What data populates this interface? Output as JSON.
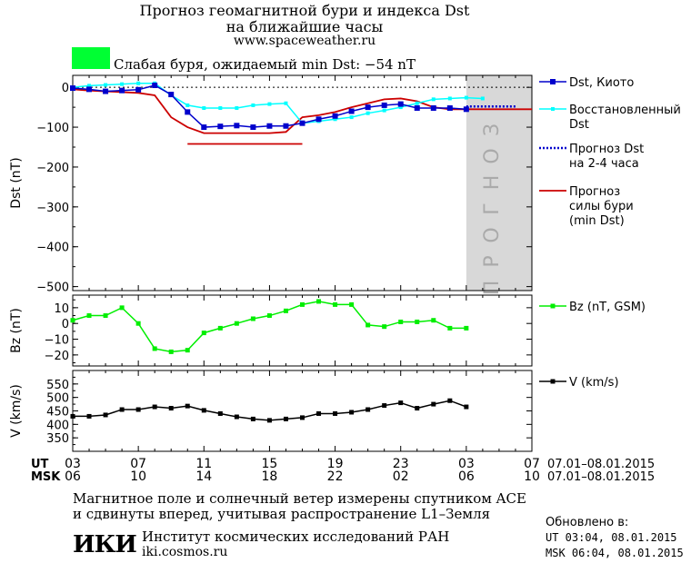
{
  "header": {
    "title_line1": "Прогноз геомагнитной бури и индекса Dst",
    "title_line2": "на ближайшие часы",
    "site": "www.spaceweather.ru"
  },
  "status": {
    "label": "Слабая буря, ожидаемый min Dst: −54 nT",
    "color": "#00ff33"
  },
  "forecast_zone_label": "ПРОГНОЗ",
  "colors": {
    "kyoto": "#0000cc",
    "restored": "#00ffff",
    "forecast_dst": "#0000cc",
    "storm": "#cc0000",
    "bz": "#00ee00",
    "v": "#000000",
    "forecast_band": "#d8d8d8"
  },
  "time_axis": {
    "ut_label": "UT",
    "msk_label": "MSK",
    "ut_ticks": [
      "03",
      "07",
      "11",
      "15",
      "19",
      "23",
      "03",
      "07"
    ],
    "msk_ticks": [
      "06",
      "10",
      "14",
      "18",
      "22",
      "02",
      "06",
      "10"
    ],
    "ut_range": "07.01–08.01.2015",
    "msk_range": "07.01–08.01.2015"
  },
  "chart_data": [
    {
      "type": "line",
      "ylabel": "Dst (nT)",
      "ylim": [
        -510,
        30
      ],
      "yticks": [
        0,
        -100,
        -200,
        -300,
        -400,
        -500
      ],
      "ytick_labels": [
        "0",
        "−100",
        "−200",
        "−300",
        "−400",
        "−500"
      ],
      "x_hours_range": [
        0,
        28
      ],
      "forecast_start_hour": 24,
      "series": [
        {
          "name": "Dst, Киото",
          "marker": "square",
          "x": [
            0,
            1,
            2,
            3,
            4,
            5,
            6,
            7,
            8,
            9,
            10,
            11,
            12,
            13,
            14,
            15,
            16,
            17,
            18,
            19,
            20,
            21,
            22,
            23,
            24
          ],
          "y": [
            -2,
            -5,
            -10,
            -8,
            -6,
            5,
            -18,
            -62,
            -100,
            -98,
            -96,
            -100,
            -97,
            -97,
            -90,
            -80,
            -72,
            -60,
            -50,
            -45,
            -42,
            -52,
            -52,
            -52,
            -55
          ]
        },
        {
          "name": "Восстановленный Dst",
          "marker": "square",
          "x": [
            0,
            1,
            2,
            3,
            4,
            5,
            6,
            7,
            8,
            9,
            10,
            11,
            12,
            13,
            14,
            15,
            16,
            17,
            18,
            19,
            20,
            21,
            22,
            23,
            24,
            25
          ],
          "y": [
            0,
            4,
            6,
            8,
            10,
            10,
            -20,
            -45,
            -52,
            -52,
            -52,
            -45,
            -42,
            -40,
            -90,
            -85,
            -80,
            -75,
            -65,
            -58,
            -50,
            -40,
            -30,
            -28,
            -26,
            -28
          ]
        },
        {
          "name": "Прогноз Dst на 2-4 часа",
          "style": "dotted",
          "x": [
            24,
            25,
            26,
            27
          ],
          "y": [
            -48,
            -48,
            -48,
            -48
          ]
        },
        {
          "name": "Прогноз силы бури (min Dst)",
          "style": "solid",
          "x": [
            0,
            1,
            2,
            3,
            4,
            5,
            6,
            7,
            8,
            9,
            10,
            11,
            12,
            13,
            14,
            15,
            16,
            17,
            18,
            19,
            20,
            21,
            22,
            23,
            24,
            25,
            26,
            27,
            28
          ],
          "y": [
            -5,
            -8,
            -10,
            -12,
            -14,
            -20,
            -75,
            -100,
            -115,
            -115,
            -115,
            -115,
            -115,
            -112,
            -75,
            -70,
            -62,
            -50,
            -40,
            -30,
            -28,
            -35,
            -50,
            -55,
            -55,
            -55,
            -55,
            -55,
            -55
          ]
        },
        {
          "name": "",
          "style": "solid",
          "x": [
            7,
            14
          ],
          "y": [
            -142,
            -142
          ]
        }
      ],
      "legend": [
        {
          "text": "Dst, Киото",
          "style": "kyoto"
        },
        {
          "text": "Восстановленный",
          "text2": "Dst",
          "style": "restored"
        },
        {
          "text": "Прогноз Dst",
          "text2": "на 2-4 часа",
          "style": "forecast"
        },
        {
          "text": "Прогноз",
          "text2": "силы бури",
          "text3": "(min Dst)",
          "style": "storm"
        }
      ]
    },
    {
      "type": "line",
      "ylabel": "Bz (nT)",
      "ylim": [
        -27,
        18
      ],
      "yticks": [
        10,
        0,
        -10,
        -20
      ],
      "ytick_labels": [
        "10",
        "0",
        "−10",
        "−20"
      ],
      "legend": "Bz (nT, GSM)",
      "series": [
        {
          "name": "Bz (nT, GSM)",
          "x": [
            0,
            1,
            2,
            3,
            4,
            5,
            6,
            7,
            8,
            9,
            10,
            11,
            12,
            13,
            14,
            15,
            16,
            17,
            18,
            19,
            20,
            21,
            22,
            23,
            24,
            25
          ],
          "y": [
            2,
            5,
            5,
            10,
            0,
            -16,
            -18,
            -17,
            -6,
            -3,
            0,
            3,
            5,
            8,
            12,
            14,
            12,
            12,
            -1,
            -2,
            1,
            1,
            2,
            -3,
            -3,
            null
          ]
        }
      ]
    },
    {
      "type": "line",
      "ylabel": "V (km/s)",
      "ylim": [
        300,
        600
      ],
      "yticks": [
        550,
        500,
        450,
        400,
        350
      ],
      "ytick_labels": [
        "550",
        "500",
        "450",
        "400",
        "350"
      ],
      "legend": "V (km/s)",
      "series": [
        {
          "name": "V (km/s)",
          "x": [
            0,
            1,
            2,
            3,
            4,
            5,
            6,
            7,
            8,
            9,
            10,
            11,
            12,
            13,
            14,
            15,
            16,
            17,
            18,
            19,
            20,
            21,
            22,
            23,
            24,
            25
          ],
          "y": [
            430,
            430,
            435,
            455,
            455,
            465,
            460,
            468,
            452,
            440,
            428,
            420,
            415,
            420,
            425,
            440,
            440,
            445,
            455,
            470,
            480,
            460,
            475,
            488,
            465,
            null
          ]
        }
      ]
    }
  ],
  "footer": {
    "line1": "Магнитное поле и солнечный ветер измерены спутником ACE",
    "line2": "и сдвинуты вперед, учитывая распространение L1–Земля",
    "institute": "Институт космических исследований РАН",
    "institute_site": "iki.cosmos.ru",
    "logo_text": "ИКИ",
    "updated_label": "Обновлено в:",
    "updated_ut": "UT   03:04, 08.01.2015",
    "updated_msk": "MSK 06:04, 08.01.2015"
  }
}
